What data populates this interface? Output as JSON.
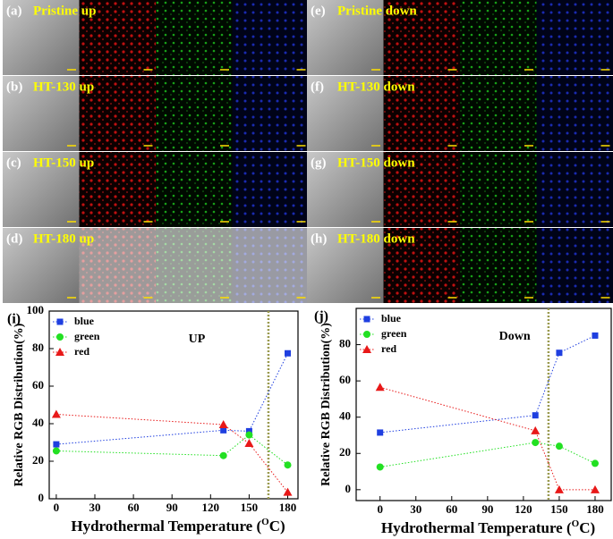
{
  "panels": [
    {
      "label": "(a)",
      "title": "Pristine up"
    },
    {
      "label": "(b)",
      "title": "HT-130 up"
    },
    {
      "label": "(c)",
      "title": "HT-150 up"
    },
    {
      "label": "(d)",
      "title": "HT-180 up"
    },
    {
      "label": "(e)",
      "title": "Pristine down"
    },
    {
      "label": "(f)",
      "title": "HT-130 down"
    },
    {
      "label": "(g)",
      "title": "HT-150 down"
    },
    {
      "label": "(h)",
      "title": "HT-180 down"
    }
  ],
  "chart_data": [
    {
      "type": "line",
      "panel_label": "(i)",
      "annotation": "UP",
      "x_label": [
        "Hydrothermal Temperature (",
        "O",
        "C)"
      ],
      "y_label": "Relative RGB Distribution(%)",
      "x": [
        0,
        130,
        150,
        180
      ],
      "series": [
        {
          "name": "blue",
          "color": "#1f3fe0",
          "marker": "square",
          "values": [
            29,
            36.5,
            36,
            77.5
          ]
        },
        {
          "name": "green",
          "color": "#22e022",
          "marker": "circle",
          "values": [
            25.5,
            23,
            34,
            18
          ]
        },
        {
          "name": "red",
          "color": "#e81818",
          "marker": "triangle",
          "values": [
            45,
            39.5,
            29.5,
            3.5
          ]
        }
      ],
      "xlim": [
        -5.5,
        188
      ],
      "xticks": [
        0,
        30,
        60,
        90,
        120,
        150,
        180
      ],
      "ylim": [
        0,
        100
      ],
      "yticks": [
        0,
        20,
        40,
        60,
        80,
        100
      ],
      "vline": 165,
      "vline_color": "#9a9a50",
      "legend": "upper left"
    },
    {
      "type": "line",
      "panel_label": "(j)",
      "annotation": "Down",
      "x_label": [
        "Hydrothermal Temperature (",
        "O",
        "C)"
      ],
      "y_label": "Relative RGB Distribution(%)",
      "x": [
        0,
        130,
        150,
        180
      ],
      "series": [
        {
          "name": "blue",
          "color": "#1f3fe0",
          "marker": "square",
          "values": [
            31.5,
            41,
            75.5,
            85
          ]
        },
        {
          "name": "green",
          "color": "#22e022",
          "marker": "circle",
          "values": [
            12.5,
            26,
            24,
            14.5
          ]
        },
        {
          "name": "red",
          "color": "#e81818",
          "marker": "triangle",
          "values": [
            56.5,
            32.5,
            0,
            0
          ]
        }
      ],
      "xlim": [
        -20,
        193.5
      ],
      "xticks": [
        0,
        30,
        60,
        90,
        120,
        150,
        180
      ],
      "ylim": [
        -6,
        100
      ],
      "yticks": [
        0,
        20,
        40,
        60,
        80
      ],
      "vline": 141,
      "vline_color": "#9a9a50",
      "legend": "upper left"
    }
  ]
}
